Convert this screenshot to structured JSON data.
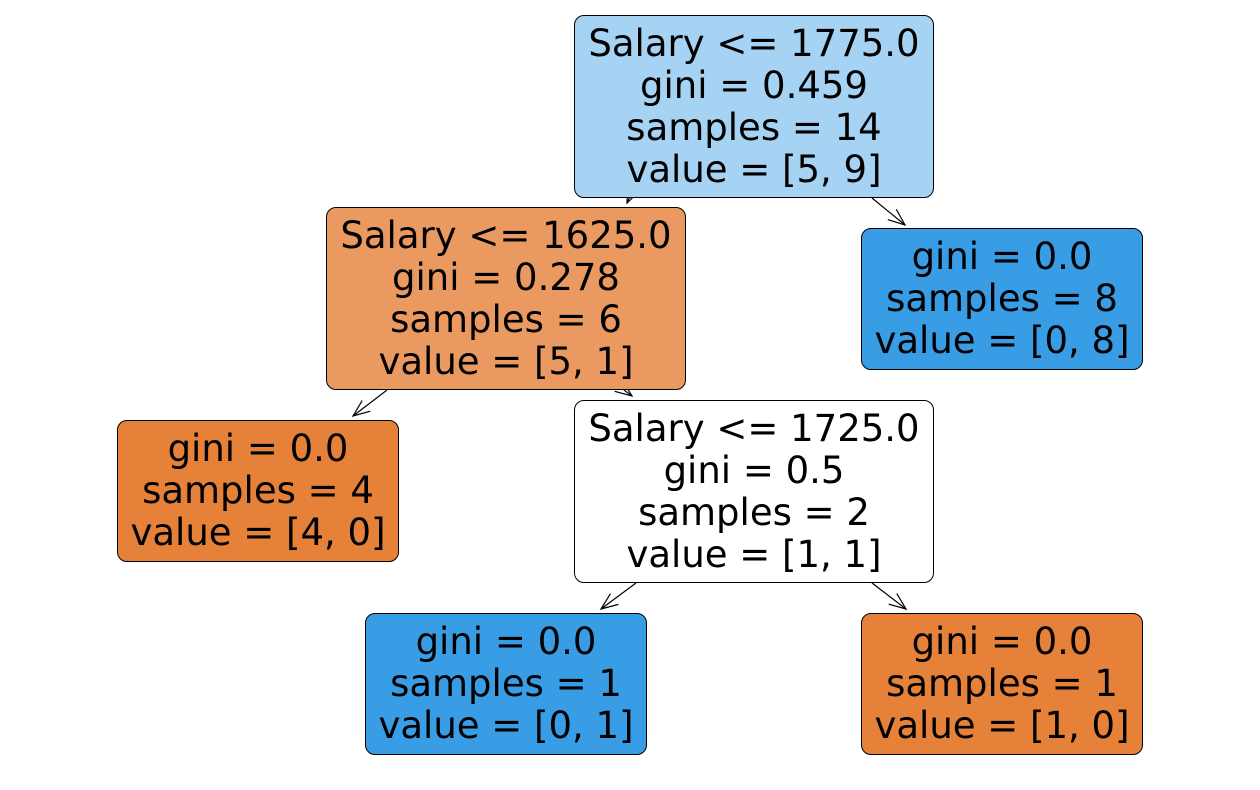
{
  "colors": {
    "class0_strong": "#e58139",
    "class0_medium": "#ea9a60",
    "class1_strong": "#399de5",
    "class1_light": "#a6d3f3",
    "neutral": "#ffffff",
    "edge": "#000000"
  },
  "tree": {
    "nodes": {
      "root": {
        "condition": "Salary <= 1775.0",
        "gini": "gini = 0.459",
        "samples": "samples = 14",
        "value": "value = [5, 9]",
        "fill": "#a6d3f3"
      },
      "n1": {
        "condition": "Salary <= 1625.0",
        "gini": "gini = 0.278",
        "samples": "samples = 6",
        "value": "value = [5, 1]",
        "fill": "#ea9a60"
      },
      "n2": {
        "gini": "gini = 0.0",
        "samples": "samples = 8",
        "value": "value = [0, 8]",
        "fill": "#399de5"
      },
      "n3": {
        "gini": "gini = 0.0",
        "samples": "samples = 4",
        "value": "value = [4, 0]",
        "fill": "#e58139"
      },
      "n4": {
        "condition": "Salary <= 1725.0",
        "gini": "gini = 0.5",
        "samples": "samples = 2",
        "value": "value = [1, 1]",
        "fill": "#ffffff"
      },
      "n5": {
        "gini": "gini = 0.0",
        "samples": "samples = 1",
        "value": "value = [0, 1]",
        "fill": "#399de5"
      },
      "n6": {
        "gini": "gini = 0.0",
        "samples": "samples = 1",
        "value": "value = [1, 0]",
        "fill": "#e58139"
      }
    },
    "edges": [
      [
        "root",
        "n1"
      ],
      [
        "root",
        "n2"
      ],
      [
        "n1",
        "n3"
      ],
      [
        "n1",
        "n4"
      ],
      [
        "n4",
        "n5"
      ],
      [
        "n4",
        "n6"
      ]
    ]
  }
}
